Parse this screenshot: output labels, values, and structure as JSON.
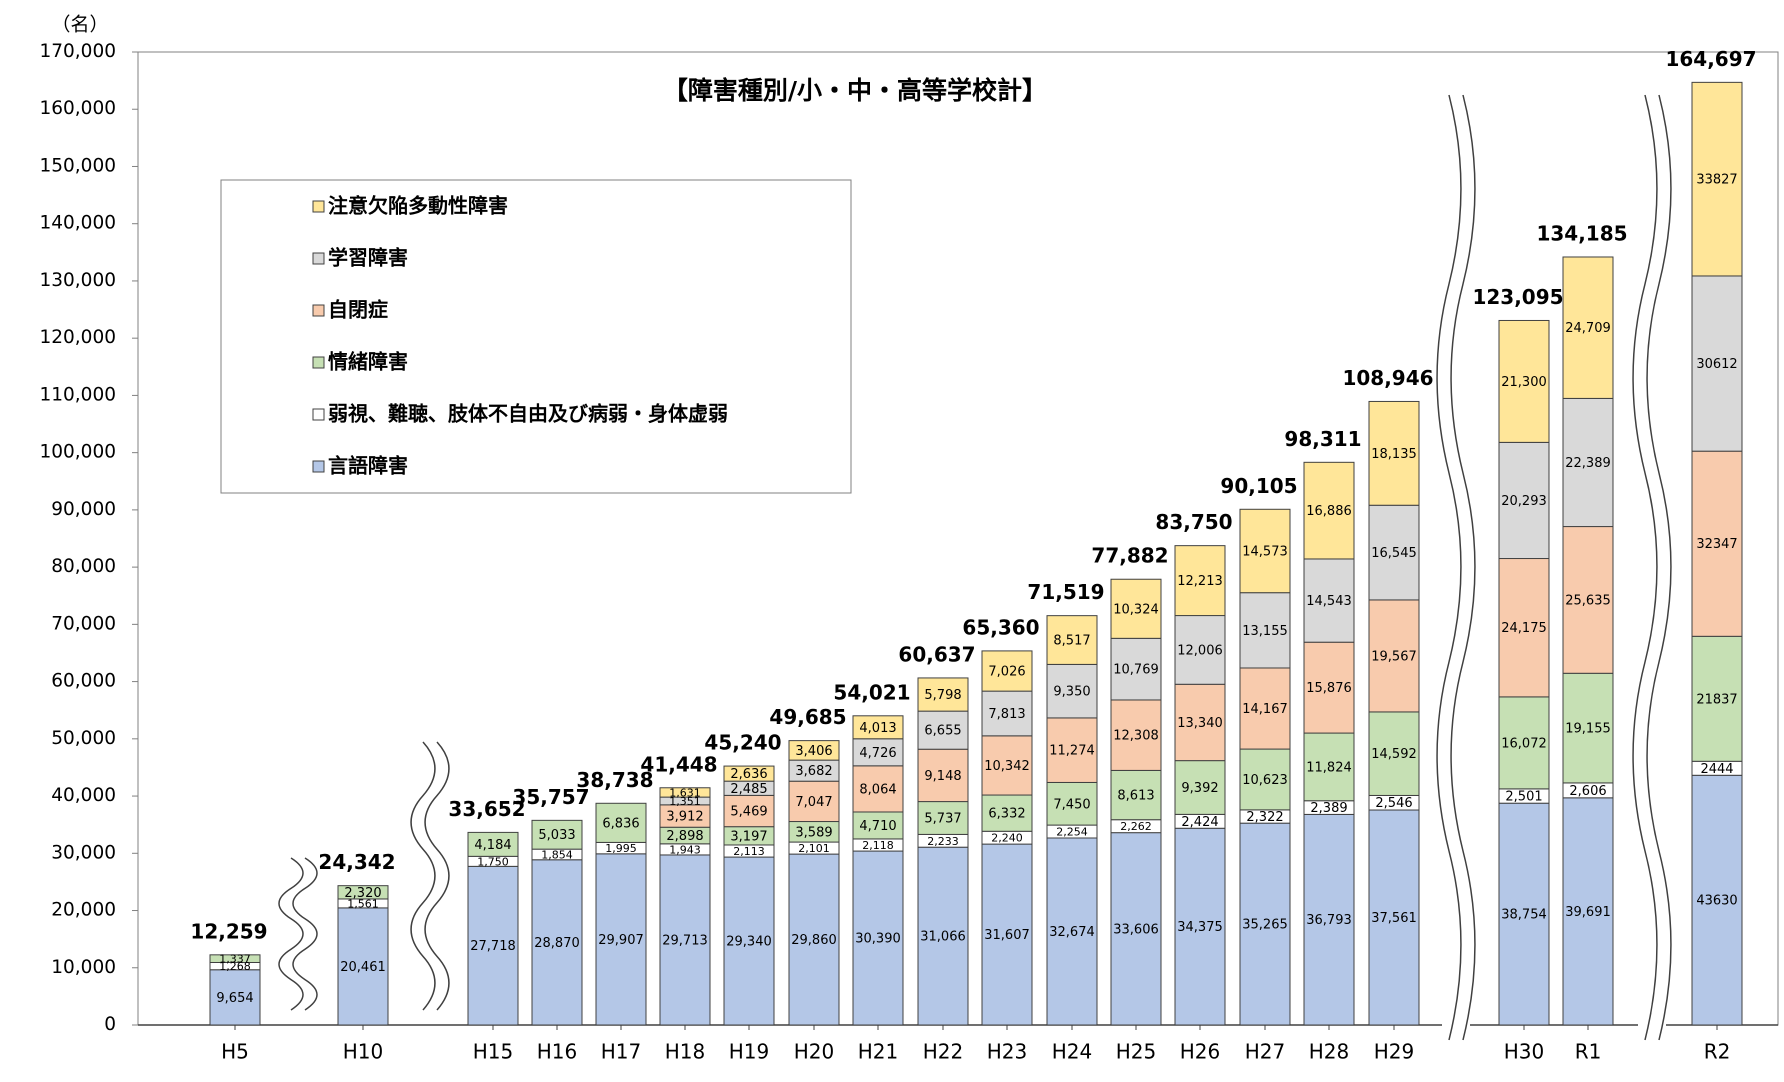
{
  "chart_data": {
    "type": "bar",
    "stacked": true,
    "title": "【障害種別/小・中・高等学校計】",
    "ylabel": "（名）",
    "ylim": [
      0,
      170000
    ],
    "ytick_step": 10000,
    "ytick_labels": [
      "0",
      "10,000",
      "20,000",
      "30,000",
      "40,000",
      "50,000",
      "60,000",
      "70,000",
      "80,000",
      "90,000",
      "100,000",
      "110,000",
      "120,000",
      "130,000",
      "140,000",
      "150,000",
      "160,000",
      "170,000"
    ],
    "grid": false,
    "legend_position": "upper-left",
    "axis_breaks": [
      "H5-H10",
      "H10-H15",
      "H29-H30",
      "R1-R2"
    ],
    "categories": [
      "H5",
      "H10",
      "H15",
      "H16",
      "H17",
      "H18",
      "H19",
      "H20",
      "H21",
      "H22",
      "H23",
      "H24",
      "H25",
      "H26",
      "H27",
      "H28",
      "H29",
      "H30",
      "R1",
      "R2"
    ],
    "series": [
      {
        "name": "言語障害",
        "color": "#b4c7e7",
        "values": [
          9654,
          20461,
          27718,
          28870,
          29907,
          29713,
          29340,
          29860,
          30390,
          31066,
          31607,
          32674,
          33606,
          34375,
          35265,
          36793,
          37561,
          38754,
          39691,
          43630
        ],
        "labels": [
          "9,654",
          "20,461",
          "27,718",
          "28,870",
          "29,907",
          "29,713",
          "29,340",
          "29,860",
          "30,390",
          "31,066",
          "31,607",
          "32,674",
          "33,606",
          "34,375",
          "35,265",
          "36,793",
          "37,561",
          "38,754",
          "39,691",
          "43630"
        ]
      },
      {
        "name": "弱視、難聴、肢体不自由及び病弱・身体虚弱",
        "color": "#ffffff",
        "values": [
          1268,
          1561,
          1750,
          1854,
          1995,
          1943,
          2113,
          2101,
          2118,
          2233,
          2240,
          2254,
          2262,
          2424,
          2322,
          2389,
          2546,
          2501,
          2606,
          2444
        ],
        "labels": [
          "1,268",
          "1,561",
          "1,750",
          "1,854",
          "1,995",
          "1,943",
          "2,113",
          "2,101",
          "2,118",
          "2,233",
          "2,240",
          "2,254",
          "2,262",
          "2,424",
          "2,322",
          "2,389",
          "2,546",
          "2,501",
          "2,606",
          "2444"
        ]
      },
      {
        "name": "情緒障害",
        "color": "#c6e0b4",
        "values": [
          1337,
          2320,
          4184,
          5033,
          6836,
          2898,
          3197,
          3589,
          4710,
          5737,
          6332,
          7450,
          8613,
          9392,
          10623,
          11824,
          14592,
          16072,
          19155,
          21837
        ],
        "labels": [
          "1,337",
          "2,320",
          "4,184",
          "5,033",
          "6,836",
          "2,898",
          "3,197",
          "3,589",
          "4,710",
          "5,737",
          "6,332",
          "7,450",
          "8,613",
          "9,392",
          "10,623",
          "11,824",
          "14,592",
          "16,072",
          "19,155",
          "21837"
        ]
      },
      {
        "name": "自閉症",
        "color": "#f8cbad",
        "values": [
          null,
          null,
          null,
          null,
          null,
          3912,
          5469,
          7047,
          8064,
          9148,
          10342,
          11274,
          12308,
          13340,
          14167,
          15876,
          19567,
          24175,
          25635,
          32347
        ],
        "labels": [
          "",
          "",
          "",
          "",
          "",
          "3,912",
          "5,469",
          "7,047",
          "8,064",
          "9,148",
          "10,342",
          "11,274",
          "12,308",
          "13,340",
          "14,167",
          "15,876",
          "19,567",
          "24,175",
          "25,635",
          "32347"
        ]
      },
      {
        "name": "学習障害",
        "color": "#d9d9d9",
        "values": [
          null,
          null,
          null,
          null,
          null,
          1351,
          2485,
          3682,
          4726,
          6655,
          7813,
          9350,
          10769,
          12006,
          13155,
          14543,
          16545,
          20293,
          22389,
          30612
        ],
        "labels": [
          "",
          "",
          "",
          "",
          "",
          "1,351",
          "2,485",
          "3,682",
          "4,726",
          "6,655",
          "7,813",
          "9,350",
          "10,769",
          "12,006",
          "13,155",
          "14,543",
          "16,545",
          "20,293",
          "22,389",
          "30612"
        ]
      },
      {
        "name": "注意欠陥多動性障害",
        "color": "#ffe699",
        "values": [
          null,
          null,
          null,
          null,
          null,
          1631,
          2636,
          3406,
          4013,
          5798,
          7026,
          8517,
          10324,
          12213,
          14573,
          16886,
          18135,
          21300,
          24709,
          33827
        ],
        "labels": [
          "",
          "",
          "",
          "",
          "",
          "1,631",
          "2,636",
          "3,406",
          "4,013",
          "5,798",
          "7,026",
          "8,517",
          "10,324",
          "12,213",
          "14,573",
          "16,886",
          "18,135",
          "21,300",
          "24,709",
          "33827"
        ]
      }
    ],
    "totals": [
      12259,
      24342,
      33652,
      35757,
      38738,
      41448,
      45240,
      49685,
      54021,
      60637,
      65360,
      71519,
      77882,
      83750,
      90105,
      98311,
      108946,
      123095,
      134185,
      164697
    ],
    "total_labels": [
      "12,259",
      "24,342",
      "33,652",
      "35,757",
      "38,738",
      "41,448",
      "45,240",
      "49,685",
      "54,021",
      "60,637",
      "65,360",
      "71,519",
      "77,882",
      "83,750",
      "90,105",
      "98,311",
      "108,946",
      "123,095",
      "134,185",
      "164,697"
    ]
  }
}
